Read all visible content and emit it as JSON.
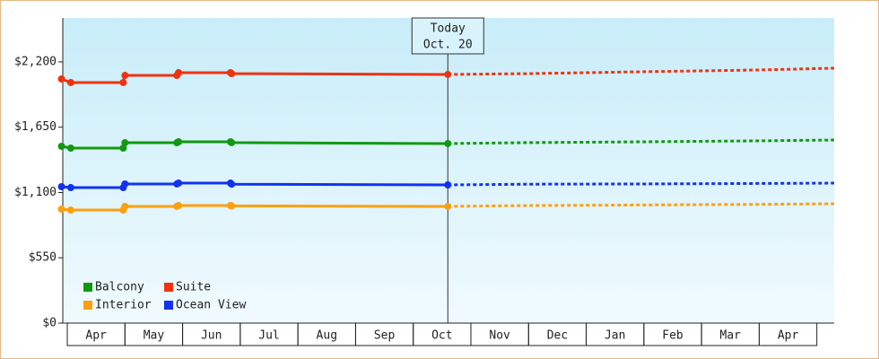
{
  "chart_data": {
    "type": "line",
    "categories": [
      "Apr",
      "May",
      "Jun",
      "Jul",
      "Aug",
      "Sep",
      "Oct",
      "Nov",
      "Dec",
      "Jan",
      "Feb",
      "Mar",
      "Apr"
    ],
    "xlim": [
      -0.078,
      13.3
    ],
    "ylim": [
      0,
      2570
    ],
    "yticks": [
      {
        "value": 0,
        "label": "$0"
      },
      {
        "value": 550,
        "label": "$550"
      },
      {
        "value": 1100,
        "label": "$1,100"
      },
      {
        "value": 1650,
        "label": "$1,650"
      },
      {
        "value": 2200,
        "label": "$2,200"
      }
    ],
    "annotation": {
      "x": 6.6,
      "lines": [
        "Today",
        "Oct. 20"
      ]
    },
    "legend": "lower left",
    "series": [
      {
        "name": "Balcony",
        "color": "#119911",
        "x": [
          -0.1,
          0.06,
          0.97,
          1.0,
          1.9,
          1.93,
          2.83,
          2.85,
          6.6
        ],
        "values": [
          1489,
          1474,
          1474,
          1519,
          1519,
          1527,
          1527,
          1520,
          1512
        ],
        "projection_x": [
          6.6,
          8.0,
          10.0,
          12.0,
          13.3
        ],
        "projection_values": [
          1512,
          1520,
          1527,
          1535,
          1542
        ]
      },
      {
        "name": "Suite",
        "color": "#ee3311",
        "x": [
          -0.1,
          0.06,
          0.97,
          1.0,
          1.9,
          1.93,
          2.83,
          2.85,
          6.6
        ],
        "values": [
          2056,
          2026,
          2026,
          2086,
          2086,
          2109,
          2109,
          2101,
          2094
        ],
        "projection_x": [
          6.6,
          8.0,
          10.0,
          12.0,
          13.3
        ],
        "projection_values": [
          2094,
          2101,
          2117,
          2132,
          2147
        ]
      },
      {
        "name": "Interior",
        "color": "#ff9f0f",
        "x": [
          -0.1,
          0.06,
          0.97,
          1.0,
          1.9,
          1.93,
          2.83,
          2.85,
          6.6
        ],
        "values": [
          960,
          952,
          952,
          983,
          983,
          990,
          990,
          987,
          983
        ],
        "projection_x": [
          6.6,
          8.0,
          10.0,
          12.0,
          13.3
        ],
        "projection_values": [
          983,
          990,
          995,
          1000,
          1005
        ]
      },
      {
        "name": "Ocean View",
        "color": "#1133ee",
        "x": [
          -0.1,
          0.06,
          0.97,
          1.0,
          1.9,
          1.93,
          2.83,
          2.85,
          6.6
        ],
        "values": [
          1149,
          1141,
          1141,
          1172,
          1172,
          1179,
          1179,
          1170,
          1164
        ],
        "projection_x": [
          6.6,
          8.0,
          10.0,
          12.0,
          13.3
        ],
        "projection_values": [
          1164,
          1170,
          1172,
          1176,
          1179
        ]
      }
    ]
  }
}
